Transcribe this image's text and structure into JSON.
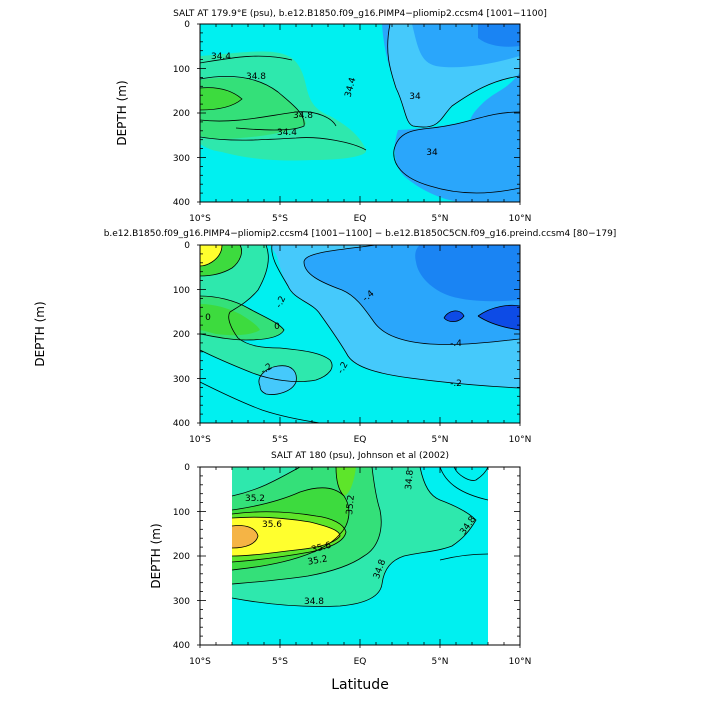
{
  "chart_data": [
    {
      "type": "contour",
      "title": "SALT AT 179.9°E (psu), b.e12.B1850.f09_g16.PIMP4−pliomip2.ccsm4 [1001−1100]",
      "xlabel": "",
      "ylabel": "DEPTH (m)",
      "x_ticks": [
        "10°S",
        "5°S",
        "EQ",
        "5°N",
        "10°N"
      ],
      "y_ticks": [
        "0",
        "100",
        "200",
        "300",
        "400"
      ],
      "xlim": [
        -10,
        10
      ],
      "ylim": [
        400,
        0
      ],
      "contour_labels": [
        {
          "text": "34.4",
          "lat": -8.7,
          "depth": 72
        },
        {
          "text": "34.8",
          "lat": -7.2,
          "depth": 117
        },
        {
          "text": "34.8",
          "lat": -4.5,
          "depth": 210
        },
        {
          "text": "34.4",
          "lat": -5.4,
          "depth": 250
        },
        {
          "text": "34.4",
          "lat": -0.5,
          "depth": 152
        },
        {
          "text": "34",
          "lat": 3.3,
          "depth": 165
        },
        {
          "text": "34",
          "lat": 5.5,
          "depth": 300
        }
      ],
      "colors": [
        "#1a84f3",
        "#2aa6fb",
        "#45c9fb",
        "#00f0f0",
        "#2ee8ad",
        "#34e079",
        "#3ddb3e"
      ]
    },
    {
      "type": "contour",
      "title": "b.e12.B1850.f09_g16.PIMP4−pliomip2.ccsm4 [1001−1100] − b.e12.B1850C5CN.f09_g16.preind.ccsm4 [80−179]",
      "xlabel": "",
      "ylabel": "DEPTH (m)",
      "x_ticks": [
        "10°S",
        "5°S",
        "EQ",
        "5°N",
        "10°N"
      ],
      "y_ticks": [
        "0",
        "100",
        "200",
        "300",
        "400"
      ],
      "xlim": [
        -10,
        10
      ],
      "ylim": [
        400,
        0
      ],
      "contour_labels": [
        {
          "text": "0",
          "lat": -9.6,
          "depth": 165
        },
        {
          "text": "0",
          "lat": -5.2,
          "depth": 200
        },
        {
          "text": "-.2",
          "lat": -4.6,
          "depth": 128
        },
        {
          "text": "-.2",
          "lat": -5.4,
          "depth": 290
        },
        {
          "text": "-.4",
          "lat": 0.8,
          "depth": 118
        },
        {
          "text": "-.2",
          "lat": -0.9,
          "depth": 280
        },
        {
          "text": "-.4",
          "lat": 5.8,
          "depth": 234
        },
        {
          "text": "-.2",
          "lat": 5.8,
          "depth": 334
        }
      ],
      "colors": [
        "#ffff2e",
        "#2ee8ad",
        "#34e079",
        "#3ddb3e",
        "#00f0f0",
        "#45c9fb",
        "#2aa6fb",
        "#1a84f3",
        "#0d4be6"
      ]
    },
    {
      "type": "contour",
      "title": "SALT AT 180 (psu), Johnson et al (2002)",
      "xlabel": "Latitude",
      "ylabel": "DEPTH (m)",
      "x_ticks": [
        "10°S",
        "5°S",
        "EQ",
        "5°N",
        "10°N"
      ],
      "y_ticks": [
        "0",
        "100",
        "200",
        "300",
        "400"
      ],
      "xlim": [
        -10,
        10
      ],
      "ylim": [
        400,
        0
      ],
      "data_extent_lat": [
        -8,
        8
      ],
      "contour_labels": [
        {
          "text": "35.2",
          "lat": -6.6,
          "depth": 77
        },
        {
          "text": "35.6",
          "lat": -5.5,
          "depth": 137
        },
        {
          "text": "35.6",
          "lat": -1.7,
          "depth": 196
        },
        {
          "text": "35.2",
          "lat": -2.3,
          "depth": 226
        },
        {
          "text": "35.2",
          "lat": -0.4,
          "depth": 86
        },
        {
          "text": "34.8",
          "lat": 3.3,
          "depth": 28
        },
        {
          "text": "34.8",
          "lat": 6.6,
          "depth": 148
        },
        {
          "text": "34.8",
          "lat": -0.4,
          "depth": 270
        },
        {
          "text": "34.8",
          "lat": -2.7,
          "depth": 362
        }
      ],
      "colors": [
        "#00f0f0",
        "#2ee8ad",
        "#34e079",
        "#3ddb3e",
        "#5ee52a",
        "#ffff2e",
        "#f5b445"
      ]
    }
  ]
}
